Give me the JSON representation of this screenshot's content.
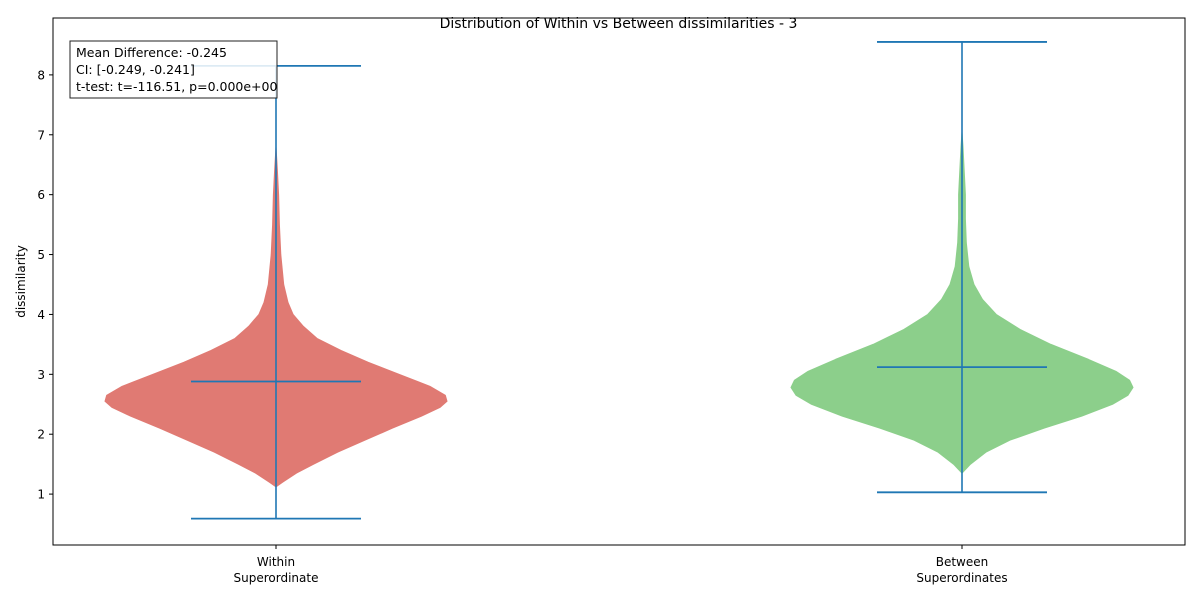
{
  "chart_data": {
    "type": "violin",
    "title": "Distribution of Within vs Between dissimilarities - 3",
    "ylabel": "dissimilarity",
    "xlabel": "",
    "ylim": [
      0.15,
      8.95
    ],
    "yticks": [
      1,
      2,
      3,
      4,
      5,
      6,
      7,
      8
    ],
    "grid": false,
    "categories": [
      {
        "line1": "Within",
        "line2": "Superordinate"
      },
      {
        "line1": "Between",
        "line2": "Superordinates"
      }
    ],
    "series": [
      {
        "color": "#e07a73",
        "min": 0.59,
        "median": 2.88,
        "max": 8.15,
        "density": [
          [
            1.12,
            0.0
          ],
          [
            1.2,
            0.04
          ],
          [
            1.35,
            0.12
          ],
          [
            1.5,
            0.22
          ],
          [
            1.7,
            0.36
          ],
          [
            1.9,
            0.52
          ],
          [
            2.1,
            0.68
          ],
          [
            2.3,
            0.85
          ],
          [
            2.45,
            0.96
          ],
          [
            2.55,
            1.0
          ],
          [
            2.65,
            0.99
          ],
          [
            2.8,
            0.9
          ],
          [
            3.0,
            0.72
          ],
          [
            3.2,
            0.54
          ],
          [
            3.4,
            0.38
          ],
          [
            3.6,
            0.24
          ],
          [
            3.8,
            0.16
          ],
          [
            4.0,
            0.1
          ],
          [
            4.2,
            0.07
          ],
          [
            4.5,
            0.045
          ],
          [
            5.0,
            0.028
          ],
          [
            5.5,
            0.02
          ],
          [
            6.0,
            0.015
          ],
          [
            6.4,
            0.008
          ],
          [
            6.8,
            0.0
          ]
        ]
      },
      {
        "color": "#8ccf8b",
        "min": 1.03,
        "median": 3.12,
        "max": 8.55,
        "density": [
          [
            1.35,
            0.0
          ],
          [
            1.5,
            0.05
          ],
          [
            1.7,
            0.14
          ],
          [
            1.9,
            0.28
          ],
          [
            2.1,
            0.48
          ],
          [
            2.3,
            0.7
          ],
          [
            2.5,
            0.88
          ],
          [
            2.65,
            0.97
          ],
          [
            2.78,
            1.0
          ],
          [
            2.9,
            0.98
          ],
          [
            3.05,
            0.9
          ],
          [
            3.25,
            0.74
          ],
          [
            3.5,
            0.52
          ],
          [
            3.75,
            0.34
          ],
          [
            4.0,
            0.2
          ],
          [
            4.25,
            0.12
          ],
          [
            4.5,
            0.07
          ],
          [
            4.8,
            0.04
          ],
          [
            5.2,
            0.025
          ],
          [
            5.6,
            0.02
          ],
          [
            6.0,
            0.02
          ],
          [
            6.4,
            0.013
          ],
          [
            6.8,
            0.006
          ],
          [
            7.05,
            0.0
          ]
        ]
      }
    ],
    "annotation": [
      "Mean Difference: -0.245",
      "CI: [-0.249, -0.241]",
      "t-test: t=-116.51, p=0.000e+00"
    ],
    "stat_line_color": "#1f77b4"
  }
}
